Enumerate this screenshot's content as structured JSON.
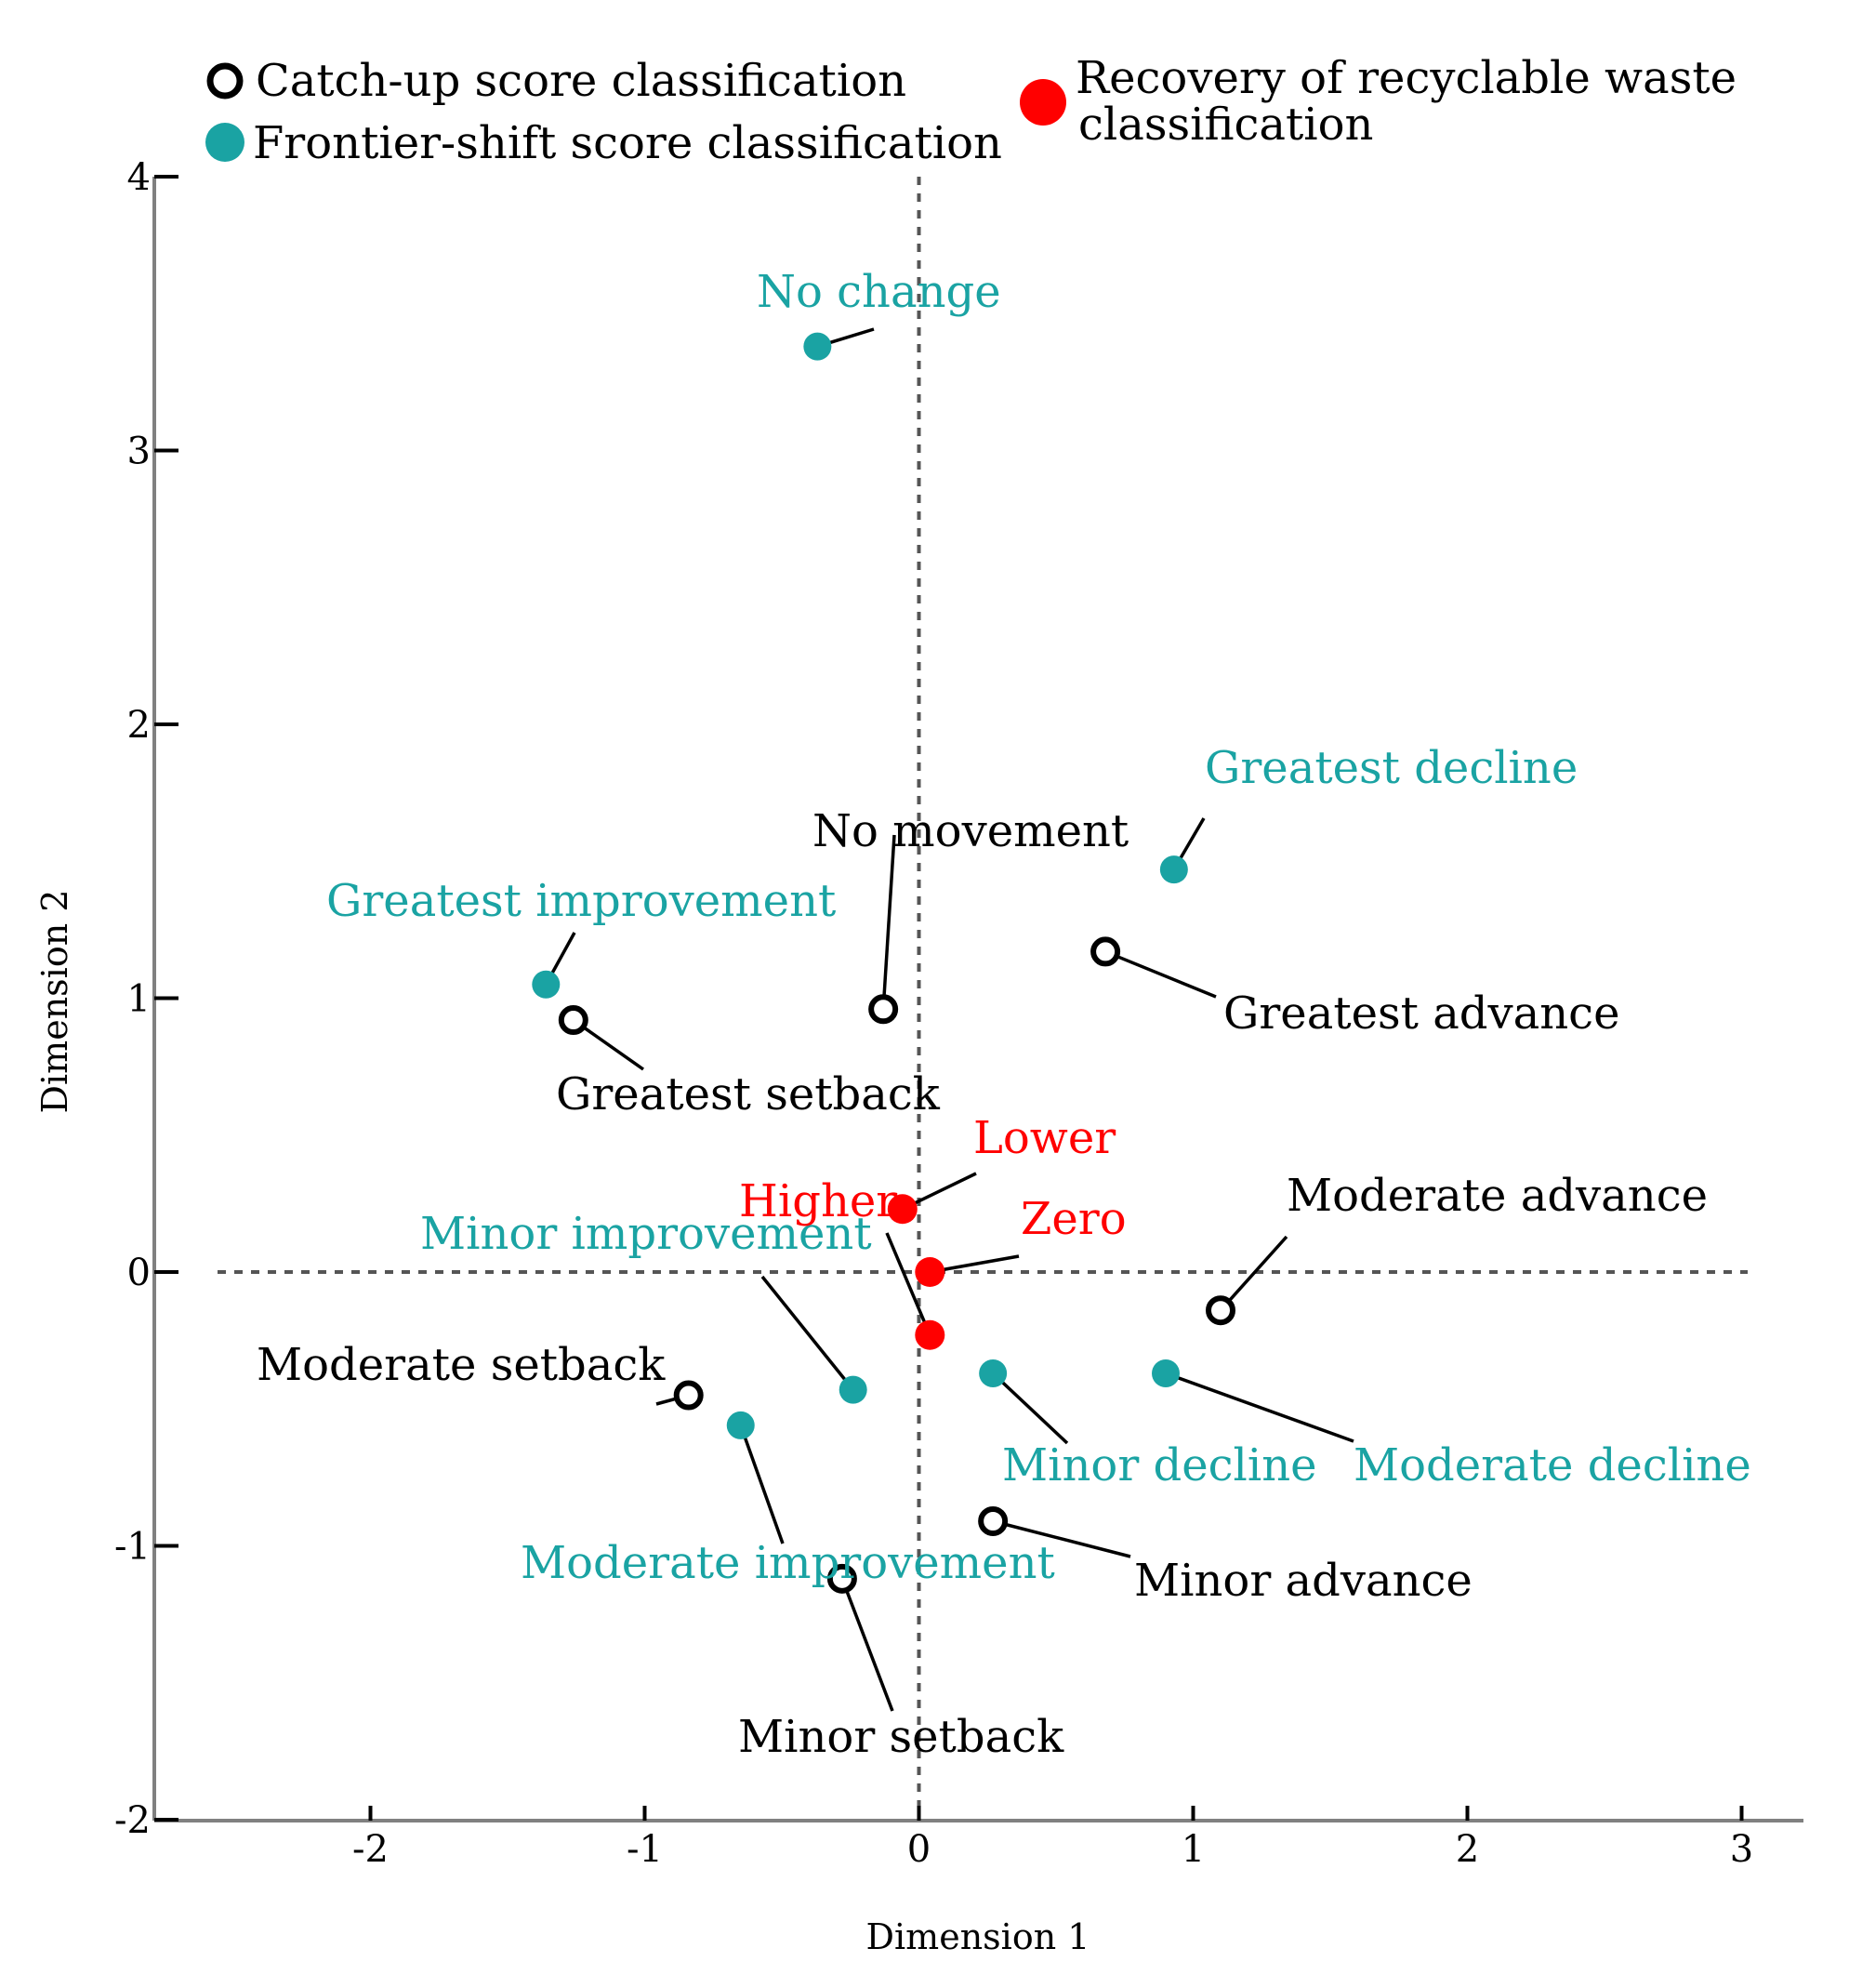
{
  "chart_data": {
    "type": "scatter",
    "xlabel": "Dimension 1",
    "ylabel": "Dimension 2",
    "xlim": [
      -2.7,
      3.2
    ],
    "ylim": [
      -2,
      4
    ],
    "xticks": [
      -2,
      -1,
      0,
      1,
      2,
      3
    ],
    "yticks": [
      -2,
      -1,
      0,
      1,
      2,
      3,
      4
    ],
    "zero_lines": true,
    "grid": false,
    "legend_position": "top",
    "colors": {
      "catchup": "#000000",
      "frontier": "#1aa3a3",
      "recovery": "#ff0000"
    },
    "series": [
      {
        "name": "Catch-up score classification",
        "key": "catchup",
        "marker": "hollow-circle",
        "points": [
          {
            "label": "No movement",
            "x": -0.13,
            "y": 0.96
          },
          {
            "label": "Greatest setback",
            "x": -1.26,
            "y": 0.92
          },
          {
            "label": "Greatest advance",
            "x": 0.68,
            "y": 1.17
          },
          {
            "label": "Moderate advance",
            "x": 1.1,
            "y": -0.14
          },
          {
            "label": "Moderate setback",
            "x": -0.84,
            "y": -0.45
          },
          {
            "label": "Minor advance",
            "x": 0.27,
            "y": -0.91
          },
          {
            "label": "Minor setback",
            "x": -0.28,
            "y": -1.12
          }
        ]
      },
      {
        "name": "Frontier-shift score classification",
        "key": "frontier",
        "marker": "filled-circle",
        "points": [
          {
            "label": "No change",
            "x": -0.37,
            "y": 3.38
          },
          {
            "label": "Greatest decline",
            "x": 0.93,
            "y": 1.47
          },
          {
            "label": "Greatest improvement",
            "x": -1.36,
            "y": 1.05
          },
          {
            "label": "Minor improvement",
            "x": -0.24,
            "y": -0.43
          },
          {
            "label": "Minor decline",
            "x": 0.27,
            "y": -0.37
          },
          {
            "label": "Moderate decline",
            "x": 0.9,
            "y": -0.37
          },
          {
            "label": "Moderate improvement",
            "x": -0.65,
            "y": -0.56
          }
        ]
      },
      {
        "name": "Recovery of recyclable waste classification",
        "key": "recovery",
        "marker": "filled-circle",
        "points": [
          {
            "label": "Lower",
            "x": -0.06,
            "y": 0.23
          },
          {
            "label": "Zero",
            "x": 0.04,
            "y": 0.0
          },
          {
            "label": "Higher",
            "x": 0.04,
            "y": -0.23
          }
        ]
      }
    ]
  }
}
